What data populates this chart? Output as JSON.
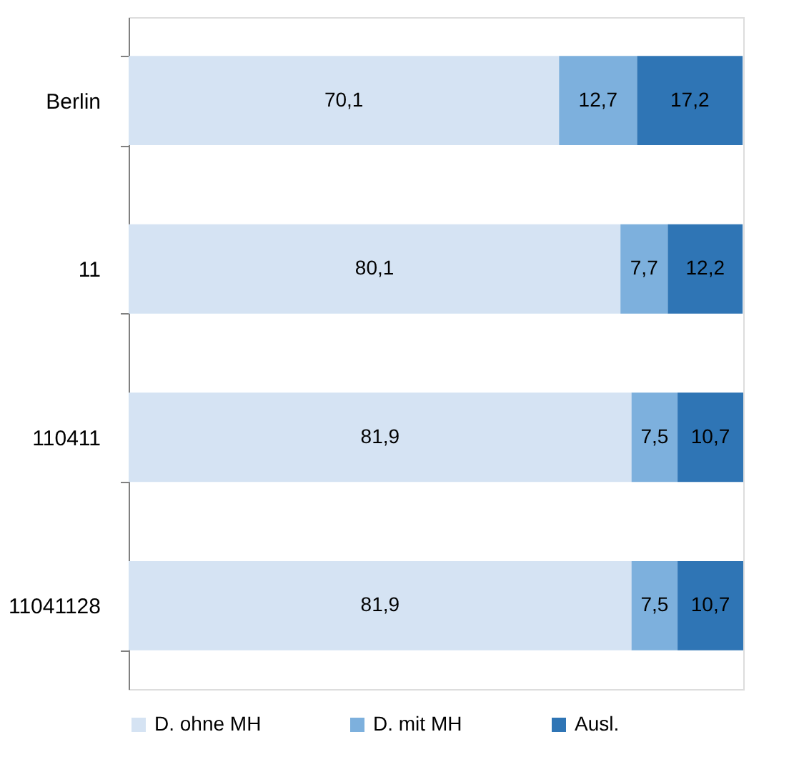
{
  "chart_data": {
    "type": "bar",
    "orientation": "horizontal",
    "stacked": true,
    "categories": [
      "Berlin",
      "11",
      "110411",
      "11041128"
    ],
    "series": [
      {
        "name": "D. ohne MH",
        "color": "#d5e3f3",
        "values": [
          70.1,
          80.1,
          81.9,
          81.9
        ],
        "value_labels": [
          "70,1",
          "80,1",
          "81,9",
          "81,9"
        ]
      },
      {
        "name": "D. mit MH",
        "color": "#7db0dd",
        "values": [
          12.7,
          7.7,
          7.5,
          7.5
        ],
        "value_labels": [
          "12,7",
          "7,7",
          "7,5",
          "7,5"
        ]
      },
      {
        "name": "Ausl.",
        "color": "#2f75b5",
        "values": [
          17.2,
          12.2,
          10.7,
          10.7
        ],
        "value_labels": [
          "17,2",
          "12,2",
          "10,7",
          "10,7"
        ]
      }
    ],
    "tick_labels": "y",
    "legend": "bottom"
  }
}
